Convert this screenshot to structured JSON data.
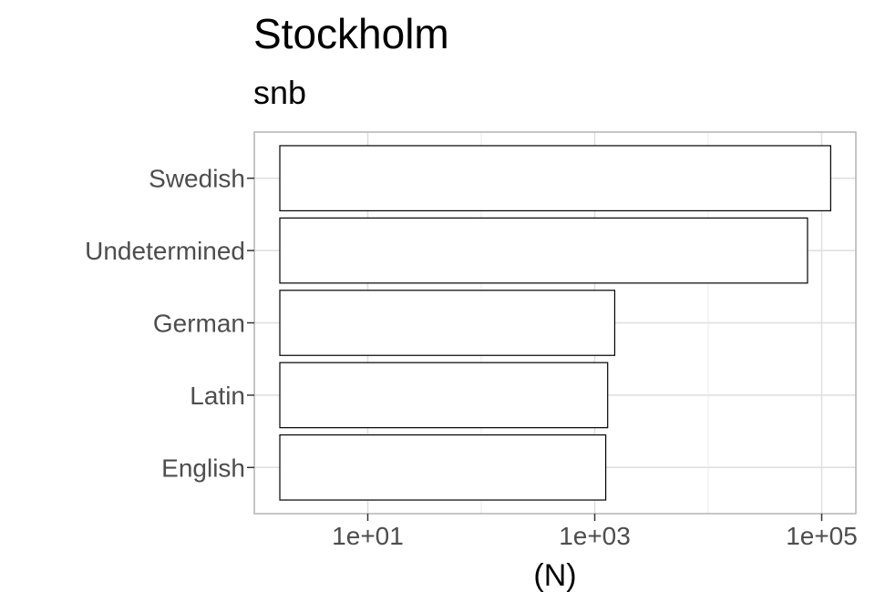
{
  "chart_data": {
    "type": "bar",
    "orientation": "horizontal",
    "title": "Stockholm",
    "subtitle": "snb",
    "xlabel": "(N)",
    "ylabel": "",
    "x_scale": "log10",
    "xlim": [
      1,
      200000
    ],
    "x_ticks": [
      10,
      1000,
      100000
    ],
    "x_tick_labels": [
      "1e+01",
      "1e+03",
      "1e+05"
    ],
    "categories": [
      "Swedish",
      "Undetermined",
      "German",
      "Latin",
      "English"
    ],
    "values": [
      120000,
      75000,
      1500,
      1300,
      1250
    ],
    "bar_fill": "#ffffff",
    "bar_stroke": "#000000",
    "grid": true,
    "legend": "none"
  }
}
